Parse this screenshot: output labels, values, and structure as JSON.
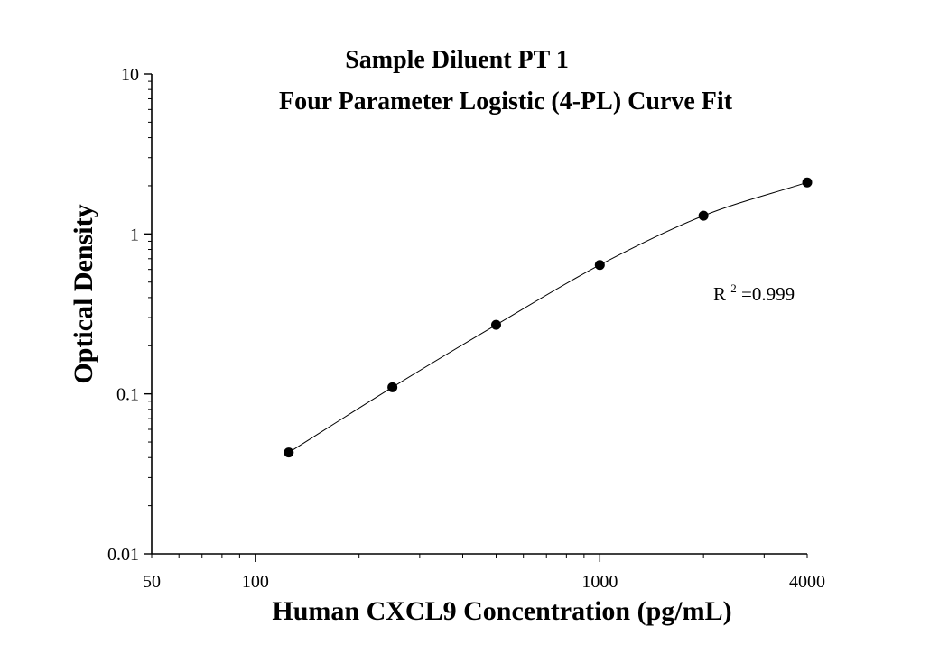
{
  "chart_data": {
    "type": "scatter",
    "title": "Sample Diluent PT 1",
    "subtitle": "Four Parameter Logistic (4-PL) Curve Fit",
    "xlabel": "Human CXCL9 Concentration (pg/mL)",
    "ylabel": "Optical Density",
    "x_scale": "log",
    "y_scale": "log",
    "xlim": [
      50,
      4000
    ],
    "ylim": [
      0.01,
      10
    ],
    "x_tick_labels": [
      "50",
      "100",
      "1000",
      "4000"
    ],
    "y_tick_labels": [
      "0.01",
      "0.1",
      "1",
      "10"
    ],
    "grid": false,
    "series": [
      {
        "x": [
          125,
          250,
          500,
          1000,
          2000,
          4000
        ],
        "y": [
          0.043,
          0.11,
          0.27,
          0.64,
          1.3,
          2.1
        ]
      }
    ],
    "fit_curve": "4-PL",
    "annotation": {
      "base": "R",
      "superscript": "2",
      "rest": "=0.999"
    }
  }
}
